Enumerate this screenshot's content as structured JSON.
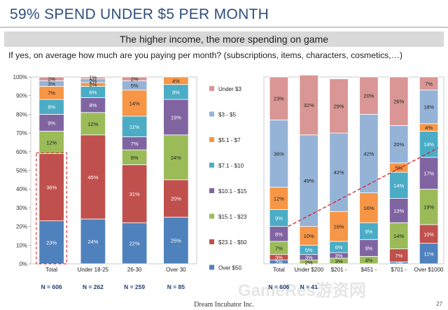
{
  "page": {
    "title": "59% SPEND UNDER $5 PER MONTH",
    "banner": "The higher income, the more spending on game",
    "question": "If yes, on average how much are you paying per month? (subscriptions, items, characters, cosmetics,…)",
    "footer": "Dream Incubator Inc.",
    "page_number": "27",
    "watermark": "GameRes游资网"
  },
  "chart_data": [
    {
      "type": "bar",
      "stacked": true,
      "title": "",
      "xlabel": "",
      "ylabel": "",
      "ylim": [
        0,
        100
      ],
      "yticks": [
        "0%",
        "10%",
        "20%",
        "30%",
        "40%",
        "50%",
        "60%",
        "70%",
        "80%",
        "90%",
        "100%"
      ],
      "grid": false,
      "legend": "right",
      "categories": [
        "Total",
        "Under 18-25",
        "26-30",
        "Over 30"
      ],
      "sample_sizes": [
        "N = 606",
        "N = 262",
        "N = 259",
        "N = 85"
      ],
      "highlight": "dashed box around the Total bar from $23.1 - $50 down (59%)",
      "series": [
        {
          "name": "Over $50",
          "color": "#4f81bd",
          "values": [
            23,
            24,
            22,
            25
          ],
          "labels": [
            "23%",
            "24%",
            "22%",
            "25%"
          ]
        },
        {
          "name": "$23.1 - $50",
          "color": "#c0504d",
          "values": [
            36,
            45,
            31,
            20
          ],
          "labels": [
            "36%",
            "45%",
            "31%",
            "20%"
          ]
        },
        {
          "name": "$15.1 - $23",
          "color": "#9bbb59",
          "values": [
            12,
            12,
            8,
            24
          ],
          "labels": [
            "12%",
            "12%",
            "8%",
            "24%"
          ]
        },
        {
          "name": "$10.1 - $15",
          "color": "#8064a2",
          "values": [
            9,
            8,
            7,
            19
          ],
          "labels": [
            "9%",
            "8%",
            "7%",
            "19%"
          ]
        },
        {
          "name": "$7.1 - $10",
          "color": "#4bacc6",
          "values": [
            8,
            6,
            11,
            8
          ],
          "labels": [
            "8%",
            "6%",
            "11%",
            "8%"
          ]
        },
        {
          "name": "$5.1 - $7",
          "color": "#f79646",
          "values": [
            7,
            2,
            14,
            4
          ],
          "labels": [
            "7%",
            "2%",
            "14%",
            "4%"
          ]
        },
        {
          "name": "$3 - $5",
          "color": "#95b3d7",
          "values": [
            3,
            2,
            5,
            0
          ],
          "labels": [
            "3%",
            "2%",
            "5%",
            ""
          ]
        },
        {
          "name": "Under $3",
          "color": "#d99694",
          "values": [
            2,
            1,
            2,
            0
          ],
          "labels": [
            "2%",
            "1%",
            "2%",
            ""
          ]
        }
      ]
    },
    {
      "type": "bar",
      "stacked": true,
      "title": "",
      "xlabel": "",
      "ylabel": "",
      "ylim": [
        0,
        100
      ],
      "grid": false,
      "categories": [
        "Total",
        "Under $200",
        "$201 -",
        "$451 -",
        "$701 -",
        "Over $1000"
      ],
      "sample_sizes": [
        "N = 606",
        "N = 41",
        "",
        "",
        "",
        ""
      ],
      "highlight": "red dashed trend line rising from Total to Over $1000",
      "series": [
        {
          "name": "Over $50",
          "color": "#4f81bd",
          "values": [
            2,
            0,
            0,
            0,
            1,
            11
          ],
          "labels": [
            "2%",
            "",
            "",
            "",
            "1%",
            "11%"
          ]
        },
        {
          "name": "$23.1 - $50",
          "color": "#c0504d",
          "values": [
            3,
            0,
            0,
            0,
            7,
            10
          ],
          "labels": [
            "3%",
            "",
            "",
            "",
            "7%",
            "10%"
          ]
        },
        {
          "name": "$15.1 - $23",
          "color": "#9bbb59",
          "values": [
            7,
            2,
            3,
            4,
            14,
            19
          ],
          "labels": [
            "7%",
            "2%",
            "3%",
            "4%",
            "14%",
            "19%"
          ]
        },
        {
          "name": "$10.1 - $15",
          "color": "#8064a2",
          "values": [
            8,
            3,
            3,
            9,
            13,
            17
          ],
          "labels": [
            "8%",
            "3%",
            "3%",
            "9%",
            "13%",
            "17%"
          ]
        },
        {
          "name": "$7.1 - $10",
          "color": "#4bacc6",
          "values": [
            9,
            5,
            6,
            9,
            14,
            14
          ],
          "labels": [
            "9%",
            "5%",
            "6%",
            "9%",
            "14%",
            "14%"
          ]
        },
        {
          "name": "$5.1 - $7",
          "color": "#f79646",
          "values": [
            12,
            10,
            16,
            16,
            5,
            4
          ],
          "labels": [
            "12%",
            "10%",
            "16%",
            "16%",
            "5%",
            "4%"
          ]
        },
        {
          "name": "$3 - $5",
          "color": "#95b3d7",
          "values": [
            36,
            49,
            42,
            42,
            20,
            18
          ],
          "labels": [
            "36%",
            "49%",
            "42%",
            "42%",
            "20%",
            "18%"
          ]
        },
        {
          "name": "Under $3",
          "color": "#d99694",
          "values": [
            23,
            32,
            29,
            20,
            26,
            7
          ],
          "labels": [
            "23%",
            "32%",
            "29%",
            "20%",
            "26%",
            "7%"
          ]
        }
      ]
    }
  ]
}
